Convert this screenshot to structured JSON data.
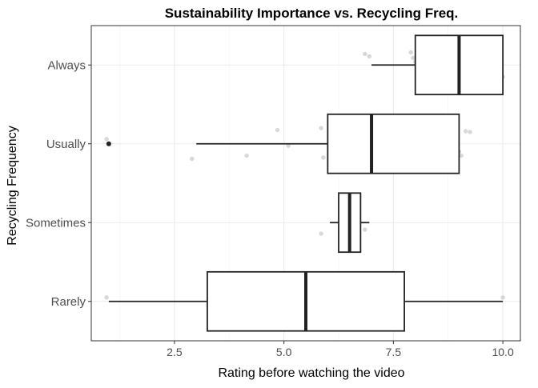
{
  "chart_data": {
    "type": "boxplot",
    "orientation": "horizontal",
    "title": "Sustainability Importance vs. Recycling Freq.",
    "xlabel": "Rating before watching the video",
    "ylabel": "Recycling Frequency",
    "xlim": [
      0.6,
      10.4
    ],
    "x_ticks": [
      2.5,
      5.0,
      7.5,
      10.0
    ],
    "x_tick_labels": [
      "2.5",
      "5.0",
      "7.5",
      "10.0"
    ],
    "x_minor_ticks": [
      1.25,
      3.75,
      6.25,
      8.75
    ],
    "categories": [
      "Rarely",
      "Sometimes",
      "Usually",
      "Always"
    ],
    "grid": true,
    "boxes": [
      {
        "category": "Rarely",
        "whisker_low": 1.0,
        "q1": 3.25,
        "median": 5.5,
        "q3": 7.75,
        "whisker_high": 10.0,
        "outliers": []
      },
      {
        "category": "Sometimes",
        "whisker_low": 6.05,
        "q1": 6.25,
        "median": 6.5,
        "q3": 6.75,
        "whisker_high": 6.95,
        "outliers": []
      },
      {
        "category": "Usually",
        "whisker_low": 3.0,
        "q1": 6.0,
        "median": 7.0,
        "q3": 9.0,
        "whisker_high": 9.0,
        "outliers": [
          1.0
        ]
      },
      {
        "category": "Always",
        "whisker_low": 7.0,
        "q1": 8.0,
        "median": 9.0,
        "q3": 10.0,
        "whisker_high": 10.0,
        "outliers": []
      }
    ],
    "jitter_points": [
      {
        "category": "Always",
        "x": 6.85,
        "offset": 0.28
      },
      {
        "category": "Always",
        "x": 6.95,
        "offset": 0.22
      },
      {
        "category": "Always",
        "x": 7.9,
        "offset": 0.32
      },
      {
        "category": "Always",
        "x": 7.95,
        "offset": 0.18
      },
      {
        "category": "Always",
        "x": 8.0,
        "offset": 0.08
      },
      {
        "category": "Always",
        "x": 8.05,
        "offset": -0.15
      },
      {
        "category": "Always",
        "x": 8.15,
        "offset": 0.3
      },
      {
        "category": "Always",
        "x": 8.3,
        "offset": -0.28
      },
      {
        "category": "Always",
        "x": 8.6,
        "offset": 0.25
      },
      {
        "category": "Always",
        "x": 8.85,
        "offset": 0.3
      },
      {
        "category": "Always",
        "x": 8.9,
        "offset": 0.2
      },
      {
        "category": "Always",
        "x": 8.95,
        "offset": 0.12
      },
      {
        "category": "Always",
        "x": 9.0,
        "offset": 0.05
      },
      {
        "category": "Always",
        "x": 9.05,
        "offset": -0.1
      },
      {
        "category": "Always",
        "x": 8.9,
        "offset": -0.22
      },
      {
        "category": "Always",
        "x": 9.1,
        "offset": 0.24
      },
      {
        "category": "Always",
        "x": 9.7,
        "offset": 0.34
      },
      {
        "category": "Always",
        "x": 9.8,
        "offset": 0.28
      },
      {
        "category": "Always",
        "x": 9.85,
        "offset": 0.33
      },
      {
        "category": "Always",
        "x": 9.9,
        "offset": -0.25
      },
      {
        "category": "Always",
        "x": 9.95,
        "offset": -0.2
      },
      {
        "category": "Always",
        "x": 10.0,
        "offset": -0.3
      },
      {
        "category": "Usually",
        "x": 0.95,
        "offset": 0.12
      },
      {
        "category": "Usually",
        "x": 2.9,
        "offset": -0.38
      },
      {
        "category": "Usually",
        "x": 4.15,
        "offset": -0.3
      },
      {
        "category": "Usually",
        "x": 4.85,
        "offset": 0.35
      },
      {
        "category": "Usually",
        "x": 5.1,
        "offset": -0.05
      },
      {
        "category": "Usually",
        "x": 5.85,
        "offset": 0.4
      },
      {
        "category": "Usually",
        "x": 5.9,
        "offset": -0.35
      },
      {
        "category": "Usually",
        "x": 6.1,
        "offset": 0.3
      },
      {
        "category": "Usually",
        "x": 6.15,
        "offset": 0.2
      },
      {
        "category": "Usually",
        "x": 6.7,
        "offset": 0.3
      },
      {
        "category": "Usually",
        "x": 6.95,
        "offset": 0.45
      },
      {
        "category": "Usually",
        "x": 7.1,
        "offset": 0.35
      },
      {
        "category": "Usually",
        "x": 7.15,
        "offset": 0.0
      },
      {
        "category": "Usually",
        "x": 7.3,
        "offset": -0.2
      },
      {
        "category": "Usually",
        "x": 7.6,
        "offset": -0.25
      },
      {
        "category": "Usually",
        "x": 7.9,
        "offset": -0.22
      },
      {
        "category": "Usually",
        "x": 8.0,
        "offset": 0.35
      },
      {
        "category": "Usually",
        "x": 8.1,
        "offset": -0.12
      },
      {
        "category": "Usually",
        "x": 8.5,
        "offset": -0.32
      },
      {
        "category": "Usually",
        "x": 8.85,
        "offset": 0.35
      },
      {
        "category": "Usually",
        "x": 8.95,
        "offset": 0.1
      },
      {
        "category": "Usually",
        "x": 9.0,
        "offset": -0.2
      },
      {
        "category": "Usually",
        "x": 9.05,
        "offset": -0.3
      },
      {
        "category": "Usually",
        "x": 9.15,
        "offset": 0.32
      },
      {
        "category": "Usually",
        "x": 9.25,
        "offset": 0.3
      },
      {
        "category": "Sometimes",
        "x": 6.45,
        "offset": 0.18
      },
      {
        "category": "Sometimes",
        "x": 6.85,
        "offset": -0.18
      },
      {
        "category": "Sometimes",
        "x": 5.85,
        "offset": -0.28
      },
      {
        "category": "Rarely",
        "x": 0.95,
        "offset": 0.1
      },
      {
        "category": "Rarely",
        "x": 10.0,
        "offset": 0.1
      }
    ]
  }
}
